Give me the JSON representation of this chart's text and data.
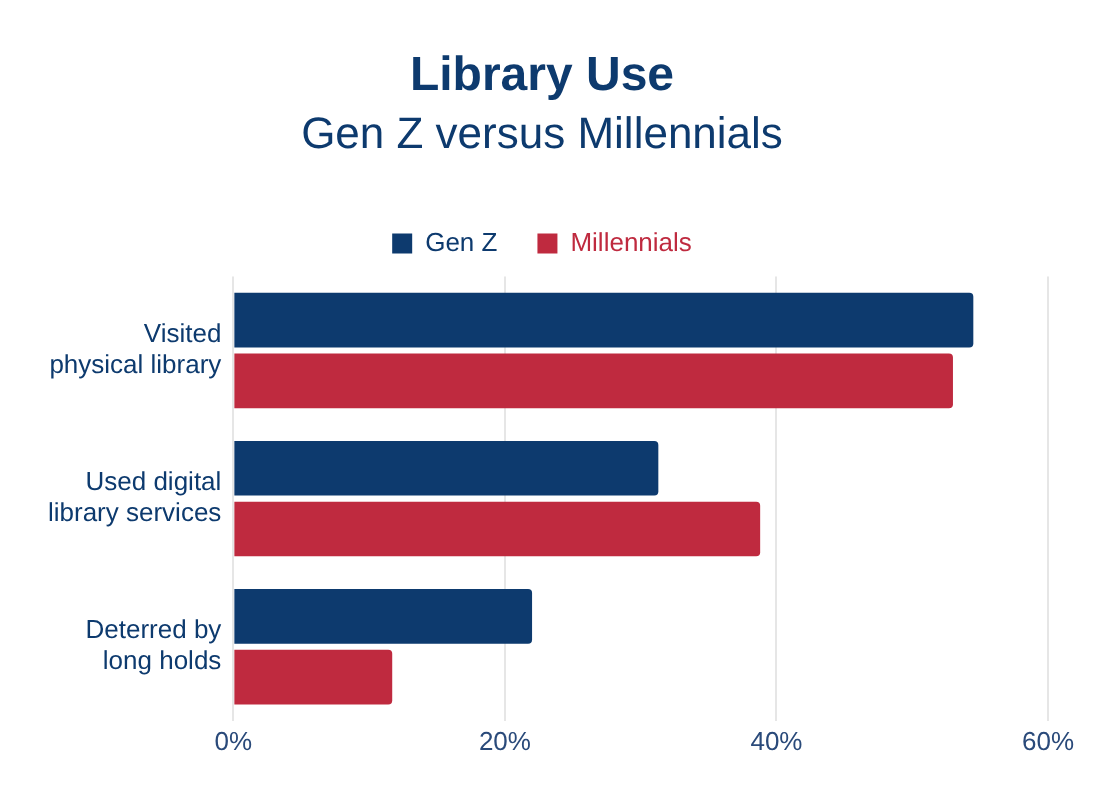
{
  "chart_data": {
    "type": "bar",
    "orientation": "horizontal",
    "title": "Library Use",
    "subtitle": "Gen Z versus Millennials",
    "categories": [
      "Visited physical library",
      "Used digital library services",
      "Deterred by long holds"
    ],
    "series": [
      {
        "name": "Gen Z",
        "color": "#0d3a6e",
        "values": [
          54.5,
          31.3,
          22
        ]
      },
      {
        "name": "Millennials",
        "color": "#bf2a3f",
        "values": [
          53,
          38.8,
          11.7
        ]
      }
    ],
    "xlim": [
      0,
      60
    ],
    "xticks": [
      {
        "value": 0,
        "label": "0%"
      },
      {
        "value": 20,
        "label": "20%"
      },
      {
        "value": 40,
        "label": "40%"
      },
      {
        "value": 60,
        "label": "60%"
      }
    ],
    "grid": "x",
    "legend": "top"
  }
}
